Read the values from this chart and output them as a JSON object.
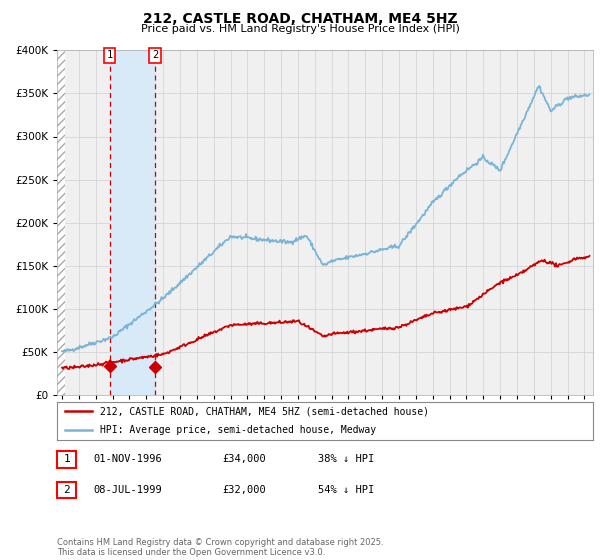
{
  "title": "212, CASTLE ROAD, CHATHAM, ME4 5HZ",
  "subtitle": "Price paid vs. HM Land Registry's House Price Index (HPI)",
  "legend_line1": "212, CASTLE ROAD, CHATHAM, ME4 5HZ (semi-detached house)",
  "legend_line2": "HPI: Average price, semi-detached house, Medway",
  "sale1_date": "01-NOV-1996",
  "sale1_price": "£34,000",
  "sale1_hpi": "38% ↓ HPI",
  "sale2_date": "08-JUL-1999",
  "sale2_price": "£32,000",
  "sale2_hpi": "54% ↓ HPI",
  "footer": "Contains HM Land Registry data © Crown copyright and database right 2025.\nThis data is licensed under the Open Government Licence v3.0.",
  "hpi_color": "#7ab4d8",
  "price_color": "#cc0000",
  "bg_color": "#ffffff",
  "plot_bg_color": "#f0f0f0",
  "shade_color": "#d8eaf7",
  "vline_color": "#cc0000",
  "grid_color": "#d0d0d0",
  "ylim": [
    0,
    400000
  ],
  "yticks": [
    0,
    50000,
    100000,
    150000,
    200000,
    250000,
    300000,
    350000,
    400000
  ],
  "sale1_x": 1996.83,
  "sale1_y": 34000,
  "sale2_x": 1999.52,
  "sale2_y": 32000,
  "xmin": 1994.0,
  "xmax": 2025.5
}
